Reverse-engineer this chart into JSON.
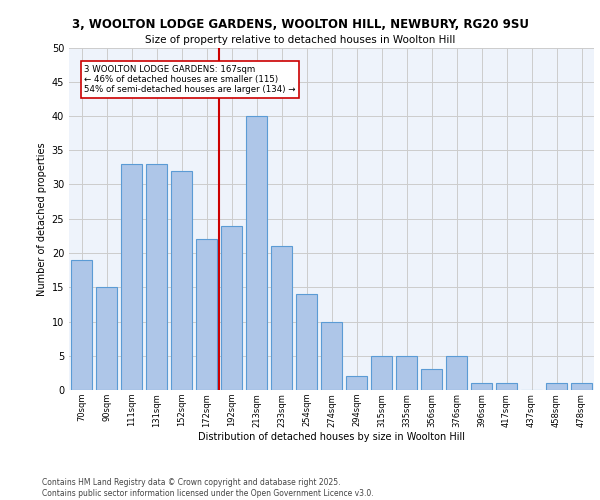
{
  "title1": "3, WOOLTON LODGE GARDENS, WOOLTON HILL, NEWBURY, RG20 9SU",
  "title2": "Size of property relative to detached houses in Woolton Hill",
  "xlabel": "Distribution of detached houses by size in Woolton Hill",
  "ylabel": "Number of detached properties",
  "categories": [
    "70sqm",
    "90sqm",
    "111sqm",
    "131sqm",
    "152sqm",
    "172sqm",
    "192sqm",
    "213sqm",
    "233sqm",
    "254sqm",
    "274sqm",
    "294sqm",
    "315sqm",
    "335sqm",
    "356sqm",
    "376sqm",
    "396sqm",
    "417sqm",
    "437sqm",
    "458sqm",
    "478sqm"
  ],
  "values": [
    19,
    15,
    33,
    33,
    32,
    22,
    24,
    40,
    21,
    14,
    10,
    2,
    5,
    5,
    3,
    5,
    1,
    1,
    0,
    1,
    1
  ],
  "bar_color": "#aec6e8",
  "bar_edge_color": "#5b9bd5",
  "vline_x": 6.0,
  "vline_color": "#cc0000",
  "annotation_text": "3 WOOLTON LODGE GARDENS: 167sqm\n← 46% of detached houses are smaller (115)\n54% of semi-detached houses are larger (134) →",
  "annotation_box_color": "#ffffff",
  "annotation_box_edge_color": "#cc0000",
  "ylim": [
    0,
    50
  ],
  "yticks": [
    0,
    5,
    10,
    15,
    20,
    25,
    30,
    35,
    40,
    45,
    50
  ],
  "bg_color": "#eef3fb",
  "footer1": "Contains HM Land Registry data © Crown copyright and database right 2025.",
  "footer2": "Contains public sector information licensed under the Open Government Licence v3.0."
}
